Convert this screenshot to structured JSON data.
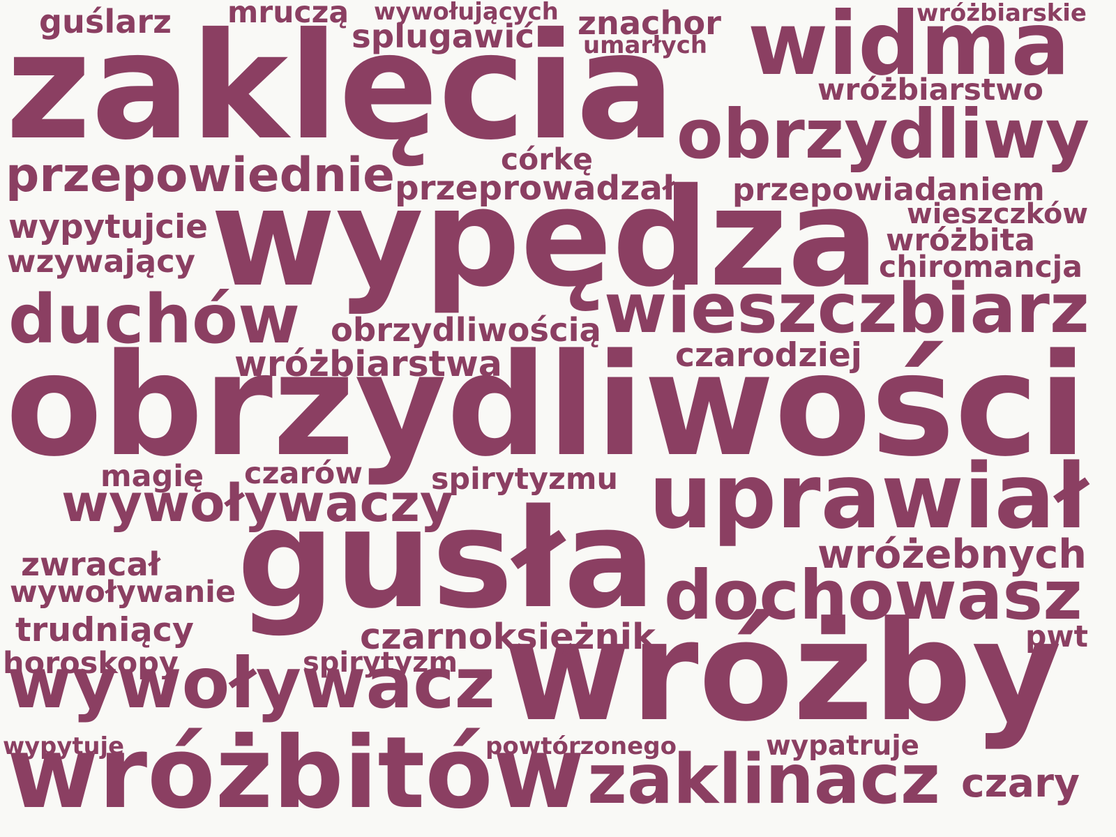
{
  "style": {
    "background": "#f9f9f6",
    "word_color": "#8b3f62"
  },
  "words": [
    {
      "text": "zaklęcia"
    },
    {
      "text": "widma"
    },
    {
      "text": "obrzydliwy"
    },
    {
      "text": "wypędza"
    },
    {
      "text": "przepowiednie"
    },
    {
      "text": "duchów"
    },
    {
      "text": "wieszczbiarz"
    },
    {
      "text": "obrzydliwości"
    },
    {
      "text": "uprawiał"
    },
    {
      "text": "wywoływaczy"
    },
    {
      "text": "gusła"
    },
    {
      "text": "dochowasz"
    },
    {
      "text": "wróżby"
    },
    {
      "text": "wywoływacz"
    },
    {
      "text": "wróżbitów"
    },
    {
      "text": "zaklinacz"
    },
    {
      "text": "guślarz"
    },
    {
      "text": "mruczą"
    },
    {
      "text": "wywołujących"
    },
    {
      "text": "splugawić"
    },
    {
      "text": "znachor"
    },
    {
      "text": "umarłych"
    },
    {
      "text": "wróżbiarskie"
    },
    {
      "text": "wróżbiarstwo"
    },
    {
      "text": "córkę"
    },
    {
      "text": "przeprowadzał"
    },
    {
      "text": "przepowiadaniem"
    },
    {
      "text": "wypytujcie"
    },
    {
      "text": "wzywający"
    },
    {
      "text": "wieszczków"
    },
    {
      "text": "wróżbita"
    },
    {
      "text": "chiromancja"
    },
    {
      "text": "obrzydliwością"
    },
    {
      "text": "wróżbiarstwa"
    },
    {
      "text": "czarodziej"
    },
    {
      "text": "magię"
    },
    {
      "text": "czarów"
    },
    {
      "text": "spirytyzmu"
    },
    {
      "text": "zwracał"
    },
    {
      "text": "wywoływanie"
    },
    {
      "text": "wróżebnych"
    },
    {
      "text": "trudniący"
    },
    {
      "text": "czarnoksiężnik"
    },
    {
      "text": "pwt"
    },
    {
      "text": "horoskopy"
    },
    {
      "text": "spirytyzm"
    },
    {
      "text": "wypytuje"
    },
    {
      "text": "powtórzonego"
    },
    {
      "text": "wypatruje"
    },
    {
      "text": "czary"
    }
  ]
}
